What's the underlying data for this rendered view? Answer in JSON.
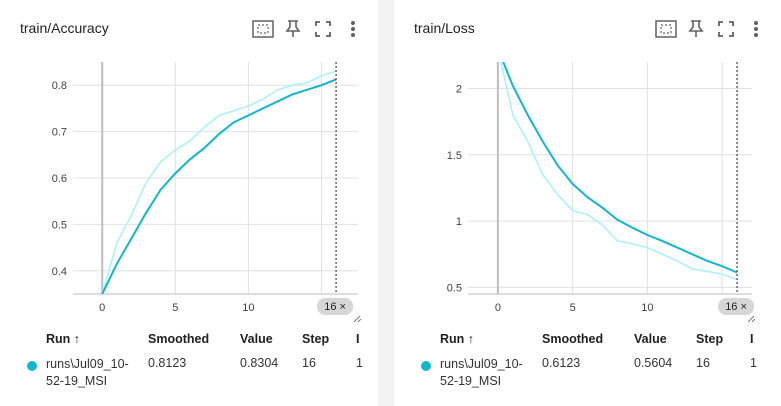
{
  "colors": {
    "smoothed": "#12b5cb",
    "raw": "#aef0f7",
    "axis": "#bdbdbd",
    "grid": "#e0e0e0",
    "step_line": "#424242"
  },
  "columns": {
    "run": "Run ↑",
    "smoothed": "Smoothed",
    "value": "Value",
    "step": "Step",
    "extra": "I"
  },
  "cards": [
    {
      "title": "train/Accuracy",
      "icons": [
        "fit-domain-icon",
        "pin-icon",
        "fullscreen-icon",
        "more-vert-icon"
      ],
      "step_marker": "16 ×",
      "row": {
        "run": "runs\\Jul09_10-52-19_MSI",
        "smoothed": "0.8123",
        "value": "0.8304",
        "step": "16",
        "extra": "1"
      }
    },
    {
      "title": "train/Loss",
      "icons": [
        "fit-domain-icon",
        "pin-icon",
        "fullscreen-icon",
        "more-vert-icon"
      ],
      "step_marker": "16 ×",
      "row": {
        "run": "runs\\Jul09_10-52-19_MSI",
        "smoothed": "0.6123",
        "value": "0.5604",
        "step": "16",
        "extra": "1"
      }
    }
  ],
  "chart_data": [
    {
      "type": "line",
      "title": "train/Accuracy",
      "xlim": [
        -2,
        17.5
      ],
      "ylim": [
        0.35,
        0.85
      ],
      "xticks": [
        "0",
        "5",
        "10",
        "15"
      ],
      "yticks": [
        "0.4",
        "0.5",
        "0.6",
        "0.7",
        "0.8"
      ],
      "grid": true,
      "series": [
        {
          "name": "raw",
          "x": [
            0,
            1,
            2,
            3,
            4,
            5,
            6,
            7,
            8,
            9,
            10,
            11,
            12,
            13,
            14,
            15,
            16
          ],
          "values": [
            0.35,
            0.46,
            0.52,
            0.59,
            0.635,
            0.66,
            0.68,
            0.71,
            0.735,
            0.745,
            0.755,
            0.77,
            0.79,
            0.8,
            0.805,
            0.82,
            0.8304
          ]
        },
        {
          "name": "smoothed",
          "x": [
            0,
            1,
            2,
            3,
            4,
            5,
            6,
            7,
            8,
            9,
            10,
            11,
            12,
            13,
            14,
            15,
            16
          ],
          "values": [
            0.35,
            0.415,
            0.47,
            0.525,
            0.575,
            0.61,
            0.64,
            0.665,
            0.695,
            0.72,
            0.735,
            0.75,
            0.765,
            0.78,
            0.79,
            0.8,
            0.8123
          ]
        }
      ],
      "step_marker_x": 16
    },
    {
      "type": "line",
      "title": "train/Loss",
      "xlim": [
        -2,
        17
      ],
      "ylim": [
        0.45,
        2.2
      ],
      "xticks": [
        "0",
        "5",
        "10",
        "15"
      ],
      "yticks": [
        "0.5",
        "1",
        "1.5",
        "2"
      ],
      "grid": true,
      "series": [
        {
          "name": "raw",
          "x": [
            0,
            1,
            2,
            3,
            4,
            5,
            6,
            7,
            8,
            9,
            10,
            11,
            12,
            13,
            14,
            15,
            16
          ],
          "values": [
            2.3,
            1.8,
            1.6,
            1.35,
            1.2,
            1.08,
            1.05,
            0.97,
            0.85,
            0.83,
            0.8,
            0.75,
            0.7,
            0.64,
            0.62,
            0.6,
            0.5604
          ]
        },
        {
          "name": "smoothed",
          "x": [
            0,
            1,
            2,
            3,
            4,
            5,
            6,
            7,
            8,
            9,
            10,
            11,
            12,
            13,
            14,
            15,
            16
          ],
          "values": [
            2.3,
            2.02,
            1.8,
            1.6,
            1.42,
            1.28,
            1.18,
            1.1,
            1.01,
            0.95,
            0.895,
            0.85,
            0.8,
            0.75,
            0.7,
            0.66,
            0.6123
          ]
        }
      ],
      "step_marker_x": 16
    }
  ]
}
